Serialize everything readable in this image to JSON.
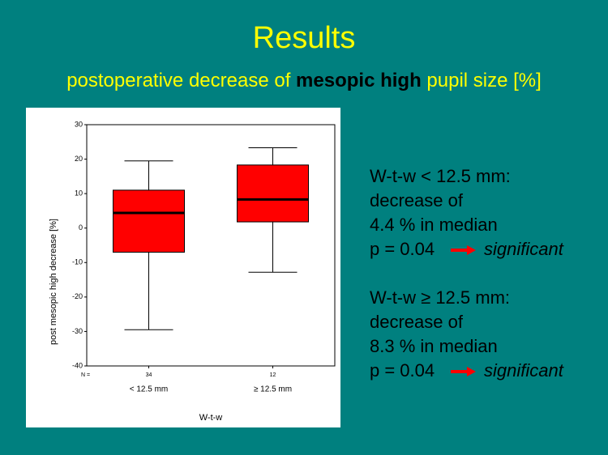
{
  "slide": {
    "title": "Results",
    "subtitle": [
      "postoperative decrease of",
      "mesopic high",
      "pupil size [%]"
    ],
    "results": [
      {
        "lines": [
          "W-t-w < 12.5 mm:",
          "decrease of",
          "4.4 % in median"
        ],
        "p": "p = 0.04",
        "verdict": "significant"
      },
      {
        "lines": [
          "W-t-w ≥ 12.5 mm:",
          "decrease of",
          "8.3 % in median"
        ],
        "p": "p = 0.04",
        "verdict": "significant"
      }
    ]
  },
  "chart_data": {
    "type": "box",
    "ylabel": "post mesopic high decrease [%]",
    "xlabel": "W-t-w",
    "categories": [
      "< 12.5 mm",
      "≥  12.5 mm"
    ],
    "n_label": "N =",
    "n": [
      34,
      12
    ],
    "boxes": [
      {
        "whislo": -29.5,
        "q1": -7,
        "med": 4.4,
        "q3": 11,
        "whishi": 19.5
      },
      {
        "whislo": -12.8,
        "q1": 1.8,
        "med": 8.3,
        "q3": 18.3,
        "whishi": 23.3
      }
    ],
    "color": "#ff0000",
    "ylim": [
      -40,
      30
    ],
    "yticks": [
      -40,
      -30,
      -20,
      -10,
      0,
      10,
      20,
      30
    ]
  }
}
